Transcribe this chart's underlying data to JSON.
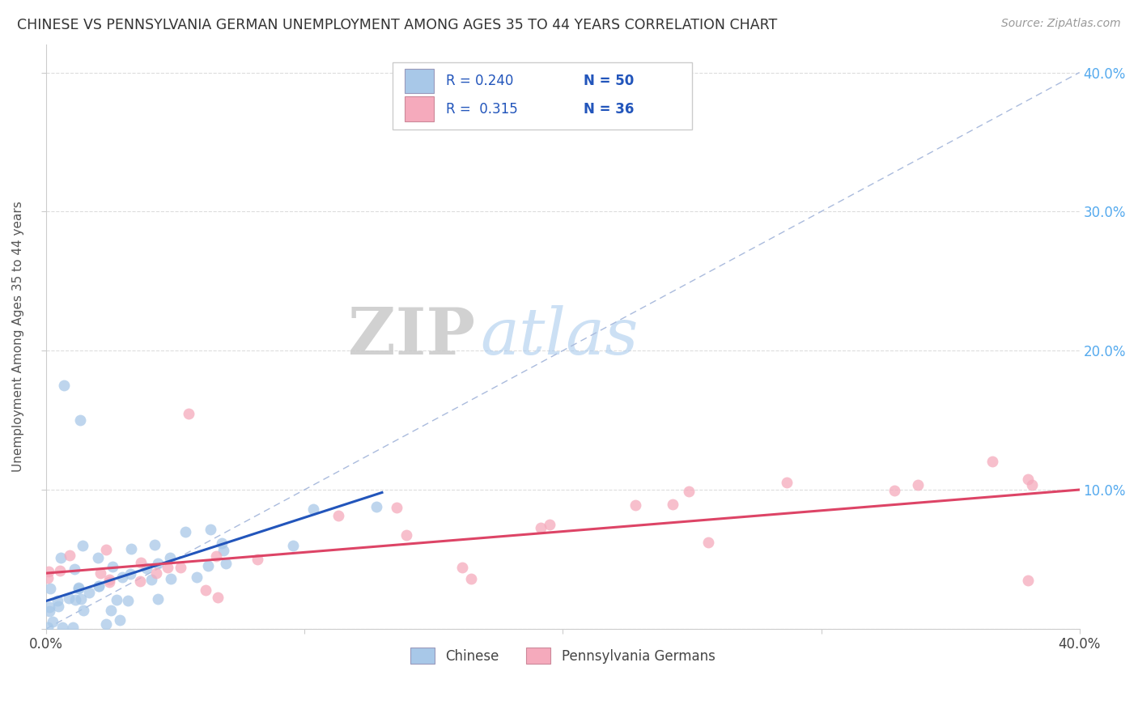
{
  "title": "CHINESE VS PENNSYLVANIA GERMAN UNEMPLOYMENT AMONG AGES 35 TO 44 YEARS CORRELATION CHART",
  "source": "Source: ZipAtlas.com",
  "ylabel": "Unemployment Among Ages 35 to 44 years",
  "xlim": [
    0.0,
    0.4
  ],
  "ylim": [
    0.0,
    0.42
  ],
  "legend_R1": "0.240",
  "legend_N1": "50",
  "legend_R2": "0.315",
  "legend_N2": "36",
  "chinese_color": "#a8c8e8",
  "pa_german_color": "#f5aabc",
  "chinese_line_color": "#2255bb",
  "pa_german_line_color": "#dd4466",
  "diag_line_color": "#aabbdd",
  "ytick_color": "#55aaee",
  "chinese_line_x0": 0.0,
  "chinese_line_y0": 0.02,
  "chinese_line_x1": 0.13,
  "chinese_line_y1": 0.098,
  "pa_line_x0": 0.0,
  "pa_line_y0": 0.04,
  "pa_line_x1": 0.4,
  "pa_line_y1": 0.1
}
